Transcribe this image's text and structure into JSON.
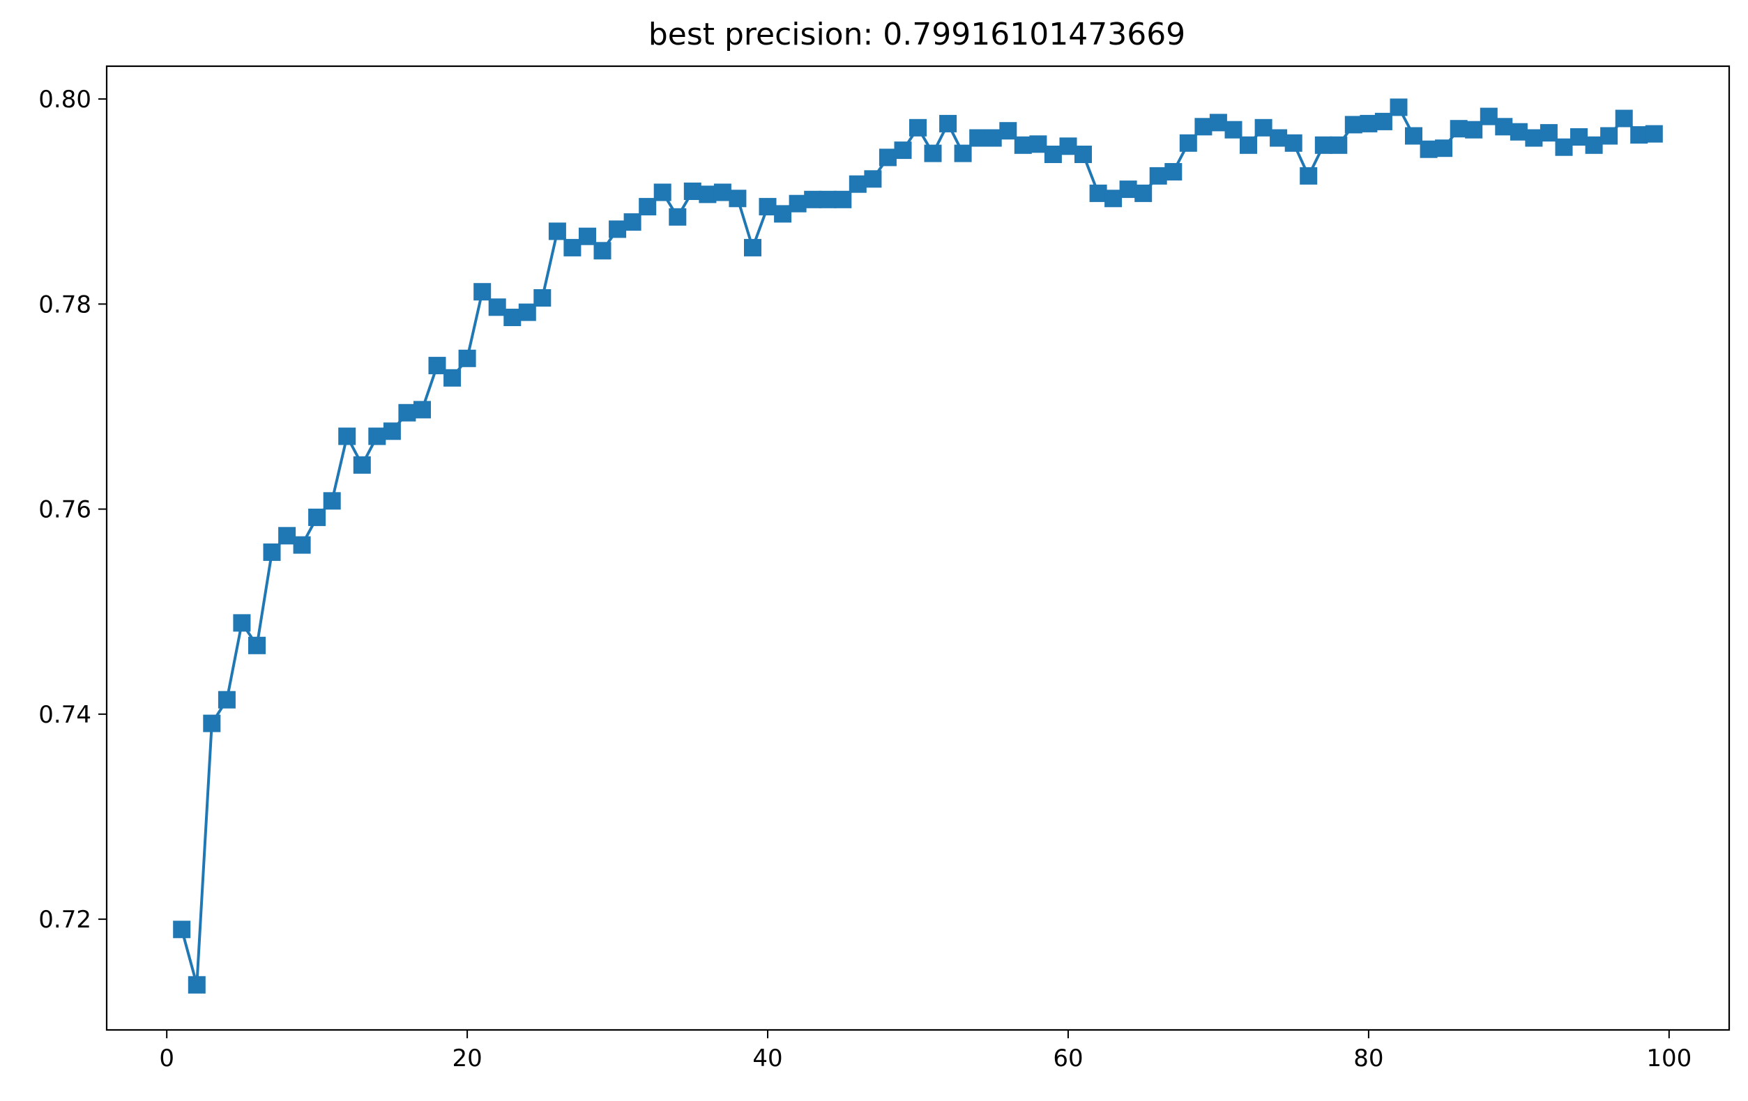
{
  "chart_data": {
    "type": "line",
    "title": "best precision: 0.79916101473669",
    "xlabel": "",
    "ylabel": "",
    "xlim": [
      -4,
      104
    ],
    "ylim": [
      0.7092,
      0.8032
    ],
    "xticks": [
      0,
      20,
      40,
      60,
      80,
      100
    ],
    "xtick_labels": [
      "0",
      "20",
      "40",
      "60",
      "80",
      "100"
    ],
    "yticks": [
      0.72,
      0.74,
      0.76,
      0.78,
      0.8
    ],
    "ytick_labels": [
      "0.72",
      "0.74",
      "0.76",
      "0.78",
      "0.80"
    ],
    "grid": false,
    "marker": "square",
    "series": [
      {
        "color": "#1f77b4",
        "x": [
          1,
          2,
          3,
          4,
          5,
          6,
          7,
          8,
          9,
          10,
          11,
          12,
          13,
          14,
          15,
          16,
          17,
          18,
          19,
          20,
          21,
          22,
          23,
          24,
          25,
          26,
          27,
          28,
          29,
          30,
          31,
          32,
          33,
          34,
          35,
          36,
          37,
          38,
          39,
          40,
          41,
          42,
          43,
          44,
          45,
          46,
          47,
          48,
          49,
          50,
          51,
          52,
          53,
          54,
          55,
          56,
          57,
          58,
          59,
          60,
          61,
          62,
          63,
          64,
          65,
          66,
          67,
          68,
          69,
          70,
          71,
          72,
          73,
          74,
          75,
          76,
          77,
          78,
          79,
          80,
          81,
          82,
          83,
          84,
          85,
          86,
          87,
          88,
          89,
          90,
          91,
          92,
          93,
          94,
          95,
          96,
          97,
          98,
          99
        ],
        "y": [
          0.719,
          0.7136,
          0.7391,
          0.7414,
          0.7489,
          0.7467,
          0.7558,
          0.7574,
          0.7565,
          0.7592,
          0.7608,
          0.7671,
          0.7643,
          0.7671,
          0.7676,
          0.7694,
          0.7697,
          0.774,
          0.7728,
          0.7747,
          0.7812,
          0.7797,
          0.7787,
          0.7792,
          0.7806,
          0.7871,
          0.7855,
          0.7866,
          0.7852,
          0.7873,
          0.788,
          0.7895,
          0.7909,
          0.7885,
          0.791,
          0.7907,
          0.7909,
          0.7903,
          0.7855,
          0.7895,
          0.7888,
          0.7898,
          0.7902,
          0.7902,
          0.7902,
          0.7917,
          0.7922,
          0.7943,
          0.795,
          0.7972,
          0.7947,
          0.7976,
          0.7947,
          0.7962,
          0.7962,
          0.7969,
          0.7955,
          0.7956,
          0.7946,
          0.7954,
          0.7946,
          0.7908,
          0.7903,
          0.7912,
          0.7908,
          0.7925,
          0.7929,
          0.7957,
          0.7973,
          0.7977,
          0.797,
          0.7955,
          0.7972,
          0.7962,
          0.7957,
          0.7925,
          0.7955,
          0.7955,
          0.7975,
          0.7976,
          0.7978,
          0.7992,
          0.7964,
          0.7951,
          0.7952,
          0.7971,
          0.797,
          0.7983,
          0.7973,
          0.7968,
          0.7962,
          0.7967,
          0.7953,
          0.7963,
          0.7955,
          0.7964,
          0.7981,
          0.7965,
          0.7966
        ]
      }
    ]
  }
}
